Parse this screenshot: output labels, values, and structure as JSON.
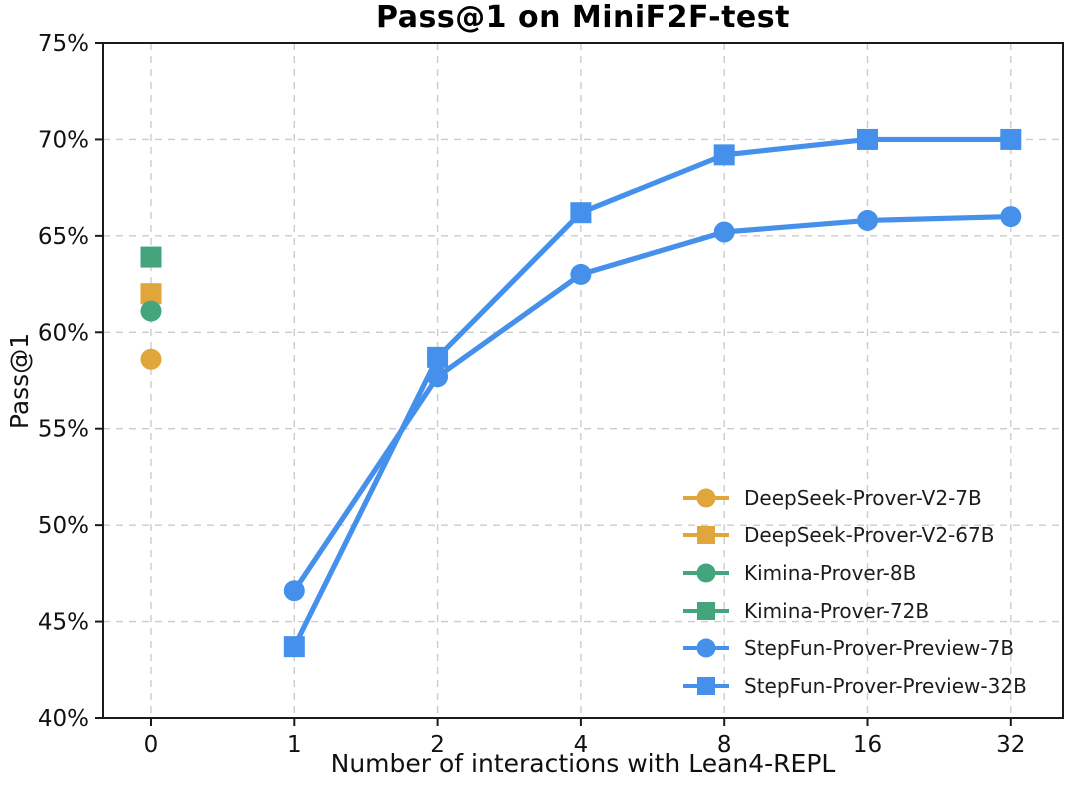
{
  "figure": {
    "title": "Pass@1 on MiniF2F-test",
    "x_axis_label": "Number of interactions with Lean4-REPL",
    "y_axis_label": "Pass@1"
  },
  "chart_data": {
    "type": "line",
    "title": "Pass@1 on MiniF2F-test",
    "xlabel": "Number of interactions with Lean4-REPL",
    "ylabel": "Pass@1",
    "x_ticks": [
      0,
      1,
      2,
      4,
      8,
      16,
      32
    ],
    "x_tick_labels": [
      "0",
      "1",
      "2",
      "4",
      "8",
      "16",
      "32"
    ],
    "x_scale": "categorical-log2-spaced",
    "ylim": [
      40,
      75
    ],
    "y_ticks": [
      40,
      45,
      50,
      55,
      60,
      65,
      70,
      75
    ],
    "y_tick_labels": [
      "40%",
      "45%",
      "50%",
      "55%",
      "60%",
      "65%",
      "70%",
      "75%"
    ],
    "grid": true,
    "grid_style": "dashed",
    "legend_position": "lower-right-inside-no-frame",
    "colors": {
      "orange": "#E0A63C",
      "green": "#44A57D",
      "blue": "#4590EA",
      "grid": "#cccccc",
      "spine": "#1a1a1a",
      "tick_text": "#111111"
    },
    "series": [
      {
        "name": "DeepSeek-Prover-V2-7B",
        "color": "#E0A63C",
        "marker": "circle",
        "points": [
          [
            0,
            58.6
          ]
        ]
      },
      {
        "name": "DeepSeek-Prover-V2-67B",
        "color": "#E0A63C",
        "marker": "square",
        "points": [
          [
            0,
            62.0
          ]
        ]
      },
      {
        "name": "Kimina-Prover-8B",
        "color": "#44A57D",
        "marker": "circle",
        "points": [
          [
            0,
            61.1
          ]
        ]
      },
      {
        "name": "Kimina-Prover-72B",
        "color": "#44A57D",
        "marker": "square",
        "points": [
          [
            0,
            63.9
          ]
        ]
      },
      {
        "name": "StepFun-Prover-Preview-7B",
        "color": "#4590EA",
        "marker": "circle",
        "points": [
          [
            1,
            46.6
          ],
          [
            2,
            57.7
          ],
          [
            4,
            63.0
          ],
          [
            8,
            65.2
          ],
          [
            16,
            65.8
          ],
          [
            32,
            66.0
          ]
        ]
      },
      {
        "name": "StepFun-Prover-Preview-32B",
        "color": "#4590EA",
        "marker": "square",
        "points": [
          [
            1,
            43.7
          ],
          [
            2,
            58.7
          ],
          [
            4,
            66.2
          ],
          [
            8,
            69.2
          ],
          [
            16,
            70.0
          ],
          [
            32,
            70.0
          ]
        ]
      }
    ]
  }
}
